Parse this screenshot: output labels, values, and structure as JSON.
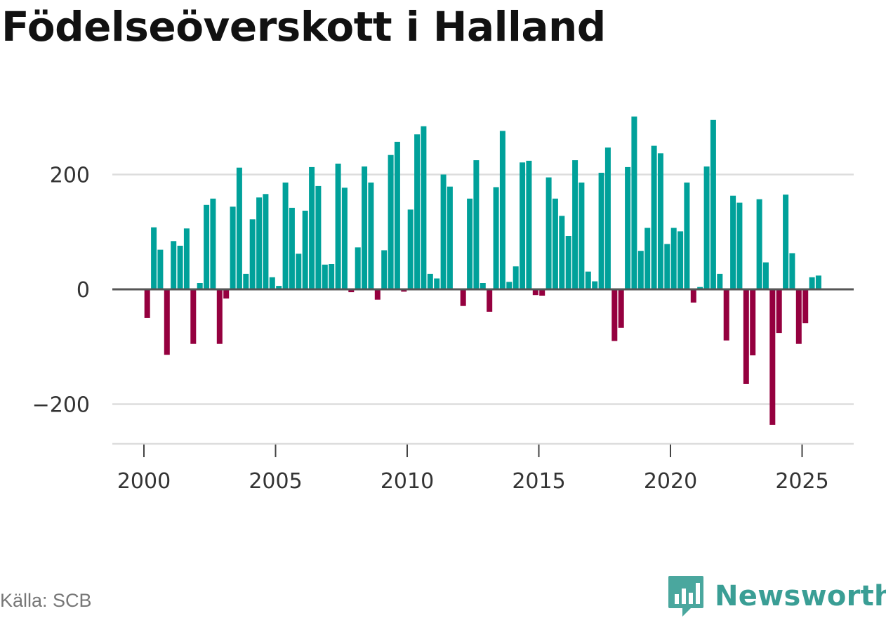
{
  "title": "Födelseöverskott i Halland",
  "source": "Källa: SCB",
  "brand": {
    "name": "Newsworthy",
    "logo_icon": "bar-chart-speech-bubble-icon"
  },
  "colors": {
    "positive": "#00A19A",
    "negative": "#95003F",
    "grid": "#dddddd",
    "zero": "#555555"
  },
  "chart_data": {
    "type": "bar",
    "title": "Födelseöverskott i Halland",
    "xlabel": "",
    "ylabel": "",
    "ylim": [
      -270,
      320
    ],
    "xlim": [
      1999.6,
      2025.8
    ],
    "yticks": [
      200,
      0,
      -200
    ],
    "ytick_labels": [
      "200",
      "0",
      "−200"
    ],
    "xticks": [
      2000,
      2005,
      2010,
      2015,
      2020,
      2025
    ],
    "xtick_labels": [
      "2000",
      "2005",
      "2010",
      "2015",
      "2020",
      "2025"
    ],
    "frequency": "quarterly",
    "series": [
      {
        "name": "Födelseöverskott",
        "points": [
          {
            "period": "2000Q1",
            "value": -50
          },
          {
            "period": "2000Q2",
            "value": 108
          },
          {
            "period": "2000Q3",
            "value": 69
          },
          {
            "period": "2000Q4",
            "value": -114
          },
          {
            "period": "2001Q1",
            "value": 84
          },
          {
            "period": "2001Q2",
            "value": 76
          },
          {
            "period": "2001Q3",
            "value": 106
          },
          {
            "period": "2001Q4",
            "value": -95
          },
          {
            "period": "2002Q1",
            "value": 11
          },
          {
            "period": "2002Q2",
            "value": 147
          },
          {
            "period": "2002Q3",
            "value": 158
          },
          {
            "period": "2002Q4",
            "value": -95
          },
          {
            "period": "2003Q1",
            "value": -16
          },
          {
            "period": "2003Q2",
            "value": 144
          },
          {
            "period": "2003Q3",
            "value": 212
          },
          {
            "period": "2003Q4",
            "value": 27
          },
          {
            "period": "2004Q1",
            "value": 122
          },
          {
            "period": "2004Q2",
            "value": 160
          },
          {
            "period": "2004Q3",
            "value": 166
          },
          {
            "period": "2004Q4",
            "value": 21
          },
          {
            "period": "2005Q1",
            "value": 6
          },
          {
            "period": "2005Q2",
            "value": 186
          },
          {
            "period": "2005Q3",
            "value": 142
          },
          {
            "period": "2005Q4",
            "value": 62
          },
          {
            "period": "2006Q1",
            "value": 137
          },
          {
            "period": "2006Q2",
            "value": 213
          },
          {
            "period": "2006Q3",
            "value": 180
          },
          {
            "period": "2006Q4",
            "value": 43
          },
          {
            "period": "2007Q1",
            "value": 44
          },
          {
            "period": "2007Q2",
            "value": 219
          },
          {
            "period": "2007Q3",
            "value": 177
          },
          {
            "period": "2007Q4",
            "value": -5
          },
          {
            "period": "2008Q1",
            "value": 73
          },
          {
            "period": "2008Q2",
            "value": 214
          },
          {
            "period": "2008Q3",
            "value": 186
          },
          {
            "period": "2008Q4",
            "value": -18
          },
          {
            "period": "2009Q1",
            "value": 68
          },
          {
            "period": "2009Q2",
            "value": 234
          },
          {
            "period": "2009Q3",
            "value": 257
          },
          {
            "period": "2009Q4",
            "value": -4
          },
          {
            "period": "2010Q1",
            "value": 139
          },
          {
            "period": "2010Q2",
            "value": 270
          },
          {
            "period": "2010Q3",
            "value": 284
          },
          {
            "period": "2010Q4",
            "value": 27
          },
          {
            "period": "2011Q1",
            "value": 19
          },
          {
            "period": "2011Q2",
            "value": 200
          },
          {
            "period": "2011Q3",
            "value": 179
          },
          {
            "period": "2011Q4",
            "value": 0
          },
          {
            "period": "2012Q1",
            "value": -29
          },
          {
            "period": "2012Q2",
            "value": 158
          },
          {
            "period": "2012Q3",
            "value": 225
          },
          {
            "period": "2012Q4",
            "value": 11
          },
          {
            "period": "2013Q1",
            "value": -39
          },
          {
            "period": "2013Q2",
            "value": 178
          },
          {
            "period": "2013Q3",
            "value": 276
          },
          {
            "period": "2013Q4",
            "value": 13
          },
          {
            "period": "2014Q1",
            "value": 40
          },
          {
            "period": "2014Q2",
            "value": 221
          },
          {
            "period": "2014Q3",
            "value": 224
          },
          {
            "period": "2014Q4",
            "value": -10
          },
          {
            "period": "2015Q1",
            "value": -11
          },
          {
            "period": "2015Q2",
            "value": 195
          },
          {
            "period": "2015Q3",
            "value": 158
          },
          {
            "period": "2015Q4",
            "value": 128
          },
          {
            "period": "2016Q1",
            "value": 93
          },
          {
            "period": "2016Q2",
            "value": 225
          },
          {
            "period": "2016Q3",
            "value": 186
          },
          {
            "period": "2016Q4",
            "value": 31
          },
          {
            "period": "2017Q1",
            "value": 14
          },
          {
            "period": "2017Q2",
            "value": 203
          },
          {
            "period": "2017Q3",
            "value": 247
          },
          {
            "period": "2017Q4",
            "value": -90
          },
          {
            "period": "2018Q1",
            "value": -67
          },
          {
            "period": "2018Q2",
            "value": 213
          },
          {
            "period": "2018Q3",
            "value": 301
          },
          {
            "period": "2018Q4",
            "value": 67
          },
          {
            "period": "2019Q1",
            "value": 107
          },
          {
            "period": "2019Q2",
            "value": 250
          },
          {
            "period": "2019Q3",
            "value": 237
          },
          {
            "period": "2019Q4",
            "value": 79
          },
          {
            "period": "2020Q1",
            "value": 107
          },
          {
            "period": "2020Q2",
            "value": 101
          },
          {
            "period": "2020Q3",
            "value": 186
          },
          {
            "period": "2020Q4",
            "value": -23
          },
          {
            "period": "2021Q1",
            "value": 4
          },
          {
            "period": "2021Q2",
            "value": 214
          },
          {
            "period": "2021Q3",
            "value": 295
          },
          {
            "period": "2021Q4",
            "value": 27
          },
          {
            "period": "2022Q1",
            "value": -89
          },
          {
            "period": "2022Q2",
            "value": 163
          },
          {
            "period": "2022Q3",
            "value": 151
          },
          {
            "period": "2022Q4",
            "value": -165
          },
          {
            "period": "2023Q1",
            "value": -115
          },
          {
            "period": "2023Q2",
            "value": 157
          },
          {
            "period": "2023Q3",
            "value": 47
          },
          {
            "period": "2023Q4",
            "value": -236
          },
          {
            "period": "2024Q1",
            "value": -76
          },
          {
            "period": "2024Q2",
            "value": 165
          },
          {
            "period": "2024Q3",
            "value": 63
          },
          {
            "period": "2024Q4",
            "value": -95
          },
          {
            "period": "2025Q1",
            "value": -59
          },
          {
            "period": "2025Q2",
            "value": 21
          },
          {
            "period": "2025Q3",
            "value": 24
          }
        ]
      }
    ]
  }
}
